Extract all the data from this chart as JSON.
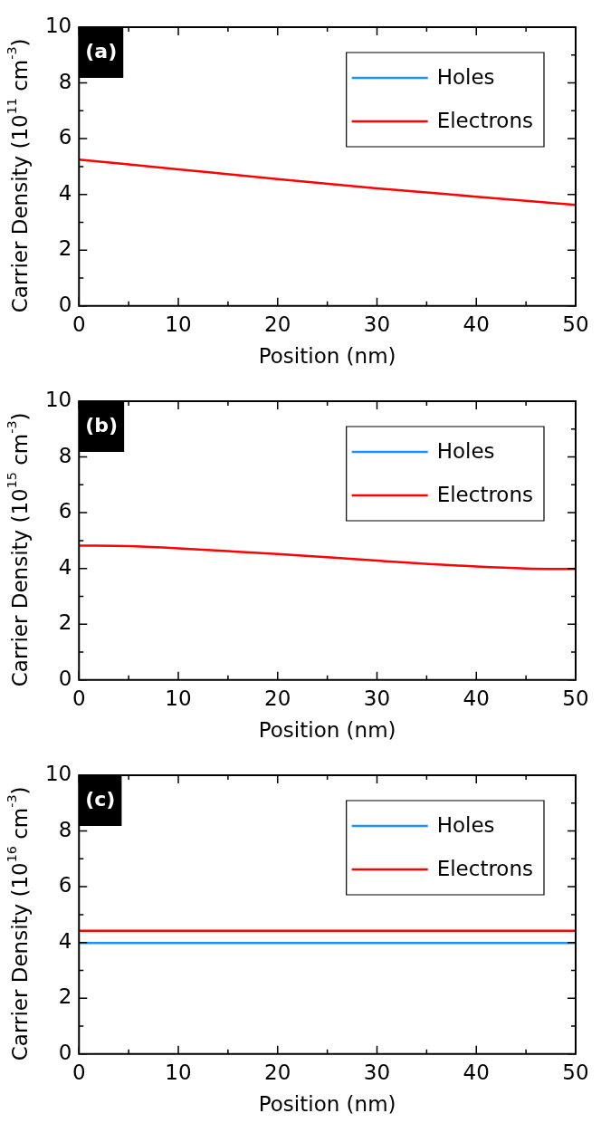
{
  "chart_data": [
    {
      "type": "line",
      "xlabel": "Position (nm)",
      "ylabel": "Carrier Density (10$^{11}$ cm$^{-3}$)",
      "annotations": [
        "(a)"
      ],
      "legend": "top right",
      "marker": "none",
      "x": [
        0,
        10,
        20,
        30,
        40,
        50
      ],
      "xlim": [
        0,
        50
      ],
      "xticks": [
        0,
        {
          "value": 5,
          "label": null
        },
        10,
        {
          "value": 15,
          "label": null
        },
        20,
        {
          "value": 25,
          "label": null
        },
        30,
        {
          "value": 35,
          "label": null
        },
        40,
        {
          "value": 45,
          "label": null
        },
        50
      ],
      "ylim": [
        0,
        10
      ],
      "yticks": [
        0,
        {
          "value": 1,
          "label": null
        },
        2,
        {
          "value": 3,
          "label": null
        },
        4,
        {
          "value": 5,
          "label": null
        },
        6,
        {
          "value": 7,
          "label": null
        },
        8,
        {
          "value": 9,
          "label": null
        },
        10
      ],
      "series": [
        {
          "name": "Holes",
          "color": "#1e90ff",
          "values": [
            null,
            null,
            null,
            null,
            null,
            null
          ]
        },
        {
          "name": "Electrons",
          "color": "#ff0000",
          "values": [
            5.25,
            4.9,
            4.55,
            4.22,
            3.92,
            3.62
          ]
        }
      ]
    },
    {
      "type": "line",
      "xlabel": "Position (nm)",
      "ylabel": "Carrier Density (10$^{15}$ cm$^{-3}$)",
      "annotations": [
        "(b)"
      ],
      "legend": "top right",
      "marker": "none",
      "x": [
        0,
        5,
        10,
        20,
        30,
        40,
        45,
        50
      ],
      "xlim": [
        0,
        50
      ],
      "xticks": [
        0,
        {
          "value": 5,
          "label": null
        },
        10,
        {
          "value": 15,
          "label": null
        },
        20,
        {
          "value": 25,
          "label": null
        },
        30,
        {
          "value": 35,
          "label": null
        },
        40,
        {
          "value": 45,
          "label": null
        },
        50
      ],
      "ylim": [
        0,
        10
      ],
      "yticks": [
        0,
        {
          "value": 1,
          "label": null
        },
        2,
        {
          "value": 3,
          "label": null
        },
        4,
        {
          "value": 5,
          "label": null
        },
        6,
        {
          "value": 7,
          "label": null
        },
        8,
        {
          "value": 9,
          "label": null
        },
        10
      ],
      "series": [
        {
          "name": "Holes",
          "color": "#1e90ff",
          "values": [
            null,
            null,
            null,
            null,
            null,
            null,
            null,
            null
          ]
        },
        {
          "name": "Electrons",
          "color": "#ff0000",
          "values": [
            4.82,
            4.8,
            4.72,
            4.52,
            4.28,
            4.07,
            4.0,
            3.98
          ]
        }
      ]
    },
    {
      "type": "line",
      "xlabel": "Position (nm)",
      "ylabel": "Carrier Density (10$^{16}$ cm$^{-3}$)",
      "annotations": [
        "(c)"
      ],
      "legend": "top right",
      "marker": "none",
      "x": [
        0,
        10,
        20,
        30,
        40,
        50
      ],
      "xlim": [
        0,
        50
      ],
      "xticks": [
        0,
        {
          "value": 5,
          "label": null
        },
        10,
        {
          "value": 15,
          "label": null
        },
        20,
        {
          "value": 25,
          "label": null
        },
        30,
        {
          "value": 35,
          "label": null
        },
        40,
        {
          "value": 45,
          "label": null
        },
        50
      ],
      "ylim": [
        0,
        10
      ],
      "yticks": [
        0,
        {
          "value": 1,
          "label": null
        },
        2,
        {
          "value": 3,
          "label": null
        },
        4,
        {
          "value": 5,
          "label": null
        },
        6,
        {
          "value": 7,
          "label": null
        },
        8,
        {
          "value": 9,
          "label": null
        },
        10
      ],
      "series": [
        {
          "name": "Holes",
          "color": "#1e90ff",
          "values": [
            3.98,
            3.98,
            3.98,
            3.98,
            3.98,
            3.98
          ]
        },
        {
          "name": "Electrons",
          "color": "#ff0000",
          "values": [
            4.42,
            4.42,
            4.42,
            4.42,
            4.42,
            4.42
          ]
        }
      ]
    }
  ]
}
